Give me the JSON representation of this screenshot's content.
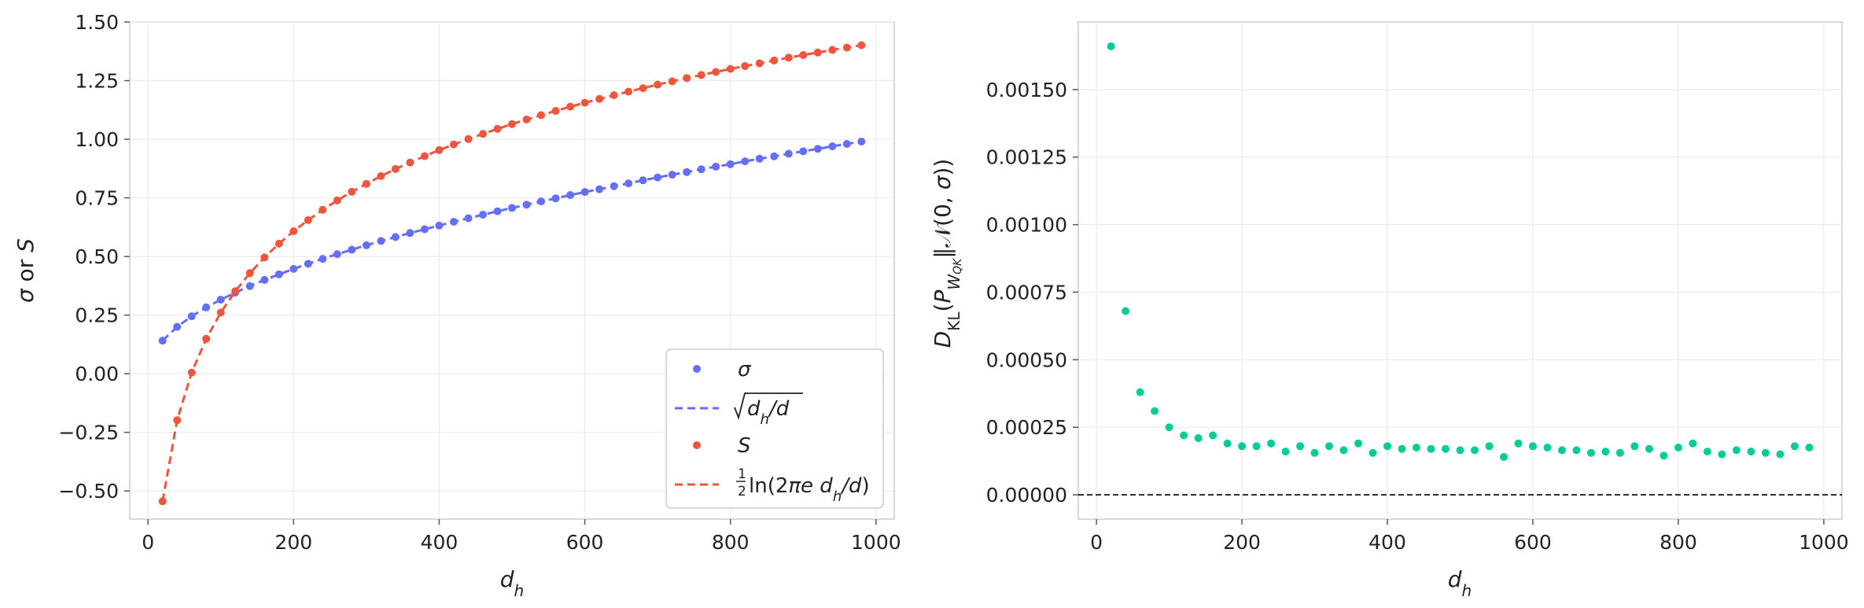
{
  "chart_data": [
    {
      "type": "scatter",
      "xlabel": "d_h",
      "ylabel": "σ or S",
      "xlim": [
        -25,
        1025
      ],
      "ylim": [
        -0.62,
        1.5
      ],
      "xticks": [
        "0",
        "200",
        "400",
        "600",
        "800",
        "1000"
      ],
      "yticks": [
        "−0.50",
        "−0.25",
        "0.00",
        "0.25",
        "0.50",
        "0.75",
        "1.00",
        "1.25",
        "1.50"
      ],
      "x": [
        20,
        40,
        60,
        80,
        100,
        120,
        140,
        160,
        180,
        200,
        220,
        240,
        260,
        280,
        300,
        320,
        340,
        360,
        380,
        400,
        420,
        440,
        460,
        480,
        500,
        520,
        540,
        560,
        580,
        600,
        620,
        640,
        660,
        680,
        700,
        720,
        740,
        760,
        780,
        800,
        820,
        840,
        860,
        880,
        900,
        920,
        940,
        960,
        980
      ],
      "series": [
        {
          "name": "σ",
          "style": "points",
          "color": "#636efa",
          "values": [
            0.141,
            0.2,
            0.245,
            0.283,
            0.316,
            0.346,
            0.374,
            0.4,
            0.424,
            0.447,
            0.469,
            0.49,
            0.51,
            0.529,
            0.548,
            0.566,
            0.583,
            0.6,
            0.616,
            0.632,
            0.648,
            0.663,
            0.678,
            0.693,
            0.707,
            0.721,
            0.735,
            0.748,
            0.762,
            0.775,
            0.787,
            0.8,
            0.812,
            0.825,
            0.837,
            0.849,
            0.86,
            0.872,
            0.883,
            0.894,
            0.906,
            0.917,
            0.927,
            0.938,
            0.949,
            0.959,
            0.97,
            0.98,
            0.99
          ]
        },
        {
          "name": "√d_h/d",
          "style": "dashed-line",
          "color": "#636efa",
          "values": [
            0.141,
            0.2,
            0.245,
            0.283,
            0.316,
            0.346,
            0.374,
            0.4,
            0.424,
            0.447,
            0.469,
            0.49,
            0.51,
            0.529,
            0.548,
            0.566,
            0.583,
            0.6,
            0.616,
            0.632,
            0.648,
            0.663,
            0.678,
            0.693,
            0.707,
            0.721,
            0.735,
            0.748,
            0.762,
            0.775,
            0.787,
            0.8,
            0.812,
            0.825,
            0.837,
            0.849,
            0.86,
            0.872,
            0.883,
            0.894,
            0.906,
            0.917,
            0.927,
            0.938,
            0.949,
            0.959,
            0.97,
            0.98,
            0.99
          ]
        },
        {
          "name": "S",
          "style": "points",
          "color": "#ef553b",
          "values": [
            -0.544,
            -0.198,
            0.005,
            0.149,
            0.261,
            0.352,
            0.429,
            0.496,
            0.555,
            0.608,
            0.655,
            0.699,
            0.739,
            0.776,
            0.81,
            0.843,
            0.873,
            0.901,
            0.928,
            0.954,
            0.978,
            1.001,
            1.023,
            1.044,
            1.065,
            1.084,
            1.103,
            1.121,
            1.139,
            1.156,
            1.172,
            1.188,
            1.203,
            1.218,
            1.233,
            1.247,
            1.261,
            1.274,
            1.287,
            1.3,
            1.312,
            1.324,
            1.336,
            1.348,
            1.359,
            1.37,
            1.381,
            1.391,
            1.401
          ]
        },
        {
          "name": "½ln(2πe d_h/d)",
          "style": "dashed-line",
          "color": "#ef553b",
          "values": [
            -0.544,
            -0.198,
            0.005,
            0.149,
            0.261,
            0.352,
            0.429,
            0.496,
            0.555,
            0.608,
            0.655,
            0.699,
            0.739,
            0.776,
            0.81,
            0.843,
            0.873,
            0.901,
            0.928,
            0.954,
            0.978,
            1.001,
            1.023,
            1.044,
            1.065,
            1.084,
            1.103,
            1.121,
            1.139,
            1.156,
            1.172,
            1.188,
            1.203,
            1.218,
            1.233,
            1.247,
            1.261,
            1.274,
            1.287,
            1.3,
            1.312,
            1.324,
            1.336,
            1.348,
            1.359,
            1.37,
            1.381,
            1.391,
            1.401
          ]
        }
      ],
      "legend_position": "lower-right",
      "grid": true
    },
    {
      "type": "scatter",
      "xlabel": "d_h",
      "ylabel": "D_KL(P_W_QK ‖ 𝒩(0, σ))",
      "xlim": [
        -25,
        1025
      ],
      "ylim": [
        -9e-05,
        0.00175
      ],
      "xticks": [
        "0",
        "200",
        "400",
        "600",
        "800",
        "1000"
      ],
      "yticks": [
        "0.00000",
        "0.00025",
        "0.00050",
        "0.00075",
        "0.00100",
        "0.00125",
        "0.00150"
      ],
      "x": [
        20,
        40,
        60,
        80,
        100,
        120,
        140,
        160,
        180,
        200,
        220,
        240,
        260,
        280,
        300,
        320,
        340,
        360,
        380,
        400,
        420,
        440,
        460,
        480,
        500,
        520,
        540,
        560,
        580,
        600,
        620,
        640,
        660,
        680,
        700,
        720,
        740,
        760,
        780,
        800,
        820,
        840,
        860,
        880,
        900,
        920,
        940,
        960,
        980
      ],
      "series": [
        {
          "style": "points",
          "color": "#00cc96",
          "values": [
            0.00166,
            0.00068,
            0.00038,
            0.00031,
            0.00025,
            0.00022,
            0.00021,
            0.00022,
            0.00019,
            0.00018,
            0.00018,
            0.00019,
            0.00016,
            0.00018,
            0.000155,
            0.00018,
            0.000165,
            0.00019,
            0.000155,
            0.00018,
            0.00017,
            0.000175,
            0.00017,
            0.00017,
            0.000165,
            0.000165,
            0.00018,
            0.00014,
            0.00019,
            0.00018,
            0.000175,
            0.000165,
            0.000165,
            0.000155,
            0.00016,
            0.000155,
            0.00018,
            0.00017,
            0.000145,
            0.000175,
            0.00019,
            0.00016,
            0.00015,
            0.000165,
            0.00016,
            0.000155,
            0.00015,
            0.00018,
            0.000175
          ]
        }
      ],
      "reference_line": {
        "y": 0,
        "style": "dashed",
        "color": "#000000"
      },
      "grid": true
    }
  ]
}
